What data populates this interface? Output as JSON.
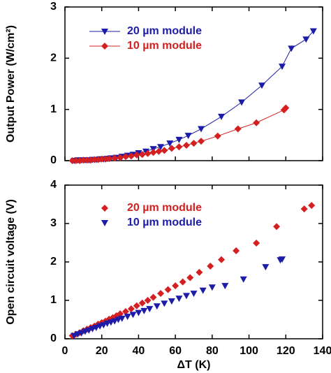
{
  "chart_data": [
    {
      "type": "scatter",
      "y_label": "Output Power (W/cm²)",
      "xlim": [
        0,
        140
      ],
      "ylim": [
        0,
        3
      ],
      "xticks": [
        0,
        20,
        40,
        60,
        80,
        100,
        120,
        140
      ],
      "yticks": [
        0,
        1,
        2,
        3
      ],
      "xtick_labels": false,
      "series": [
        {
          "name": "20 µm module",
          "color": "#1c1ca8",
          "marker": "triangle-down",
          "line": true,
          "x": [
            5,
            7,
            9,
            11,
            13,
            15,
            17,
            19,
            21,
            23,
            25,
            28,
            31,
            34,
            37,
            40,
            44,
            48,
            52,
            57,
            62,
            67,
            74,
            85,
            96,
            107,
            118,
            123,
            131,
            135
          ],
          "values": [
            0.0,
            0.01,
            0.01,
            0.01,
            0.01,
            0.02,
            0.02,
            0.03,
            0.03,
            0.04,
            0.05,
            0.06,
            0.08,
            0.1,
            0.12,
            0.15,
            0.18,
            0.23,
            0.27,
            0.34,
            0.41,
            0.49,
            0.62,
            0.86,
            1.14,
            1.47,
            1.84,
            2.19,
            2.37,
            2.53
          ]
        },
        {
          "name": "10 µm module",
          "color": "#d42020",
          "marker": "diamond",
          "line": true,
          "x": [
            4,
            6,
            8,
            10,
            12,
            14,
            16,
            18,
            20,
            22,
            24,
            27,
            30,
            33,
            36,
            39,
            42,
            45,
            48,
            51,
            54,
            58,
            62,
            66,
            70,
            74,
            83,
            94,
            104,
            119,
            120
          ],
          "values": [
            0.0,
            0.0,
            0.0,
            0.01,
            0.01,
            0.01,
            0.02,
            0.02,
            0.03,
            0.03,
            0.04,
            0.05,
            0.06,
            0.08,
            0.09,
            0.11,
            0.12,
            0.14,
            0.16,
            0.18,
            0.2,
            0.24,
            0.27,
            0.3,
            0.34,
            0.38,
            0.48,
            0.62,
            0.74,
            0.99,
            1.03
          ]
        }
      ]
    },
    {
      "type": "scatter",
      "x_label": "ΔT (K)",
      "y_label": "Open circuit voltage (V)",
      "xlim": [
        0,
        140
      ],
      "ylim": [
        0,
        4
      ],
      "xticks": [
        0,
        20,
        40,
        60,
        80,
        100,
        120,
        140
      ],
      "yticks": [
        0,
        1,
        2,
        3,
        4
      ],
      "xtick_labels": true,
      "series": [
        {
          "name": "20 µm module",
          "color": "#d42020",
          "marker": "diamond",
          "line": false,
          "x": [
            4,
            6,
            8,
            10,
            12,
            14,
            16,
            18,
            20,
            22,
            24,
            26,
            28,
            30,
            33,
            36,
            39,
            42,
            45,
            48,
            52,
            56,
            60,
            64,
            68,
            73,
            79,
            85,
            93,
            104,
            115,
            130,
            134
          ],
          "values": [
            0.08,
            0.12,
            0.16,
            0.21,
            0.25,
            0.29,
            0.33,
            0.38,
            0.42,
            0.46,
            0.51,
            0.55,
            0.6,
            0.65,
            0.71,
            0.78,
            0.86,
            0.93,
            1.0,
            1.08,
            1.18,
            1.28,
            1.38,
            1.48,
            1.59,
            1.73,
            1.89,
            2.06,
            2.29,
            2.49,
            2.92,
            3.38,
            3.47
          ]
        },
        {
          "name": "10 µm module",
          "color": "#1c1ca8",
          "marker": "triangle-down",
          "line": false,
          "x": [
            5,
            7,
            9,
            11,
            13,
            15,
            17,
            19,
            21,
            23,
            25,
            27,
            29,
            31,
            34,
            37,
            40,
            43,
            46,
            50,
            54,
            58,
            62,
            66,
            70,
            75,
            80,
            87,
            97,
            109,
            117,
            118
          ],
          "values": [
            0.08,
            0.12,
            0.15,
            0.19,
            0.22,
            0.26,
            0.29,
            0.33,
            0.36,
            0.4,
            0.43,
            0.46,
            0.5,
            0.53,
            0.58,
            0.63,
            0.68,
            0.73,
            0.78,
            0.85,
            0.92,
            0.98,
            1.05,
            1.12,
            1.18,
            1.26,
            1.34,
            1.38,
            1.55,
            1.87,
            2.05,
            2.07
          ]
        }
      ]
    }
  ]
}
